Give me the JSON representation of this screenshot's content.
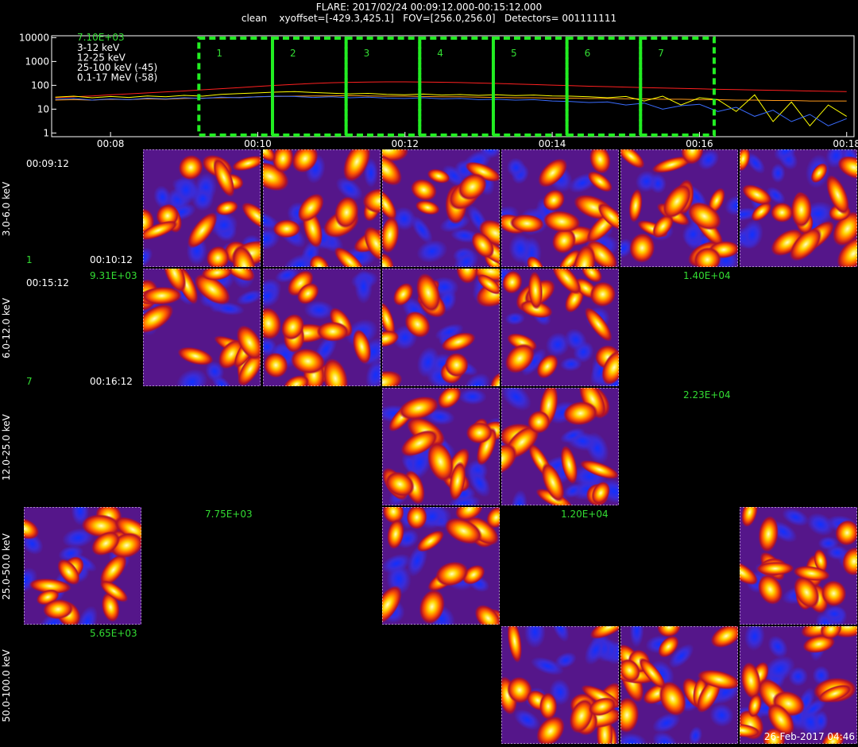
{
  "header": {
    "title": "FLARE: 2017/02/24 00:09:12.000-00:15:12.000",
    "subtitle": "clean    xyoffset=[-429.3,425.1]   FOV=[256.0,256.0]   Detectors= 001111111"
  },
  "chart_data": {
    "type": "line",
    "log_y": true,
    "legend_title": "7.10E+03",
    "xlim": [
      7.2,
      18.1
    ],
    "ylim": [
      0.7,
      12000
    ],
    "xticks": [
      {
        "value": 8,
        "label": "00:08"
      },
      {
        "value": 10,
        "label": "00:10"
      },
      {
        "value": 12,
        "label": "00:12"
      },
      {
        "value": 14,
        "label": "00:14"
      },
      {
        "value": 16,
        "label": "00:16"
      },
      {
        "value": 18,
        "label": "00:18"
      }
    ],
    "yticks": [
      1,
      10,
      100,
      1000,
      10000
    ],
    "x": [
      7.25,
      7.5,
      7.75,
      8,
      8.25,
      8.5,
      8.75,
      9,
      9.25,
      9.5,
      9.75,
      10,
      10.25,
      10.5,
      10.75,
      11,
      11.25,
      11.5,
      11.75,
      12,
      12.25,
      12.5,
      12.75,
      13,
      13.25,
      13.5,
      13.75,
      14,
      14.25,
      14.5,
      14.75,
      15,
      15.25,
      15.5,
      15.75,
      16,
      16.25,
      16.5,
      16.75,
      17,
      17.25,
      17.5,
      17.75,
      18
    ],
    "series": [
      {
        "name": "3-12 keV",
        "color": "#ff2020",
        "values": [
          30,
          33,
          36,
          40,
          44,
          48,
          53,
          58,
          65,
          72,
          80,
          90,
          100,
          110,
          120,
          128,
          134,
          138,
          140,
          140,
          138,
          135,
          130,
          125,
          120,
          114,
          108,
          102,
          97,
          92,
          88,
          84,
          80,
          77,
          74,
          71,
          68,
          66,
          64,
          62,
          60,
          58,
          56,
          55
        ]
      },
      {
        "name": "12-25 keV",
        "color": "#ff9a1a",
        "values": [
          24,
          25,
          24,
          26,
          25,
          27,
          26,
          28,
          29,
          30,
          31,
          33,
          34,
          35,
          36,
          36,
          37,
          36,
          35,
          35,
          34,
          33,
          33,
          32,
          31,
          30,
          30,
          29,
          29,
          28,
          28,
          27,
          27,
          26,
          26,
          25,
          25,
          24,
          24,
          23,
          23,
          22,
          22,
          22
        ]
      },
      {
        "name": "25-100 keV (-45)",
        "color": "#ffff00",
        "values": [
          32,
          35,
          30,
          34,
          31,
          36,
          33,
          38,
          35,
          42,
          45,
          48,
          52,
          55,
          50,
          47,
          44,
          46,
          42,
          40,
          43,
          39,
          41,
          38,
          40,
          37,
          39,
          36,
          35,
          33,
          30,
          34,
          22,
          35,
          15,
          30,
          25,
          8,
          40,
          3,
          20,
          2,
          15,
          5
        ]
      },
      {
        "name": "0.1-17 MeV (-58)",
        "color": "#3a6cff",
        "values": [
          26,
          28,
          24,
          27,
          25,
          29,
          27,
          30,
          28,
          32,
          30,
          33,
          35,
          34,
          31,
          33,
          30,
          32,
          29,
          28,
          30,
          27,
          28,
          25,
          26,
          24,
          25,
          22,
          21,
          19,
          20,
          15,
          18,
          10,
          14,
          16,
          8,
          12,
          5,
          9,
          3,
          6,
          2,
          4
        ]
      }
    ],
    "intervals": [
      {
        "label": "1",
        "start": 9.2,
        "end": 10.2
      },
      {
        "label": "2",
        "start": 10.2,
        "end": 11.2
      },
      {
        "label": "3",
        "start": 11.2,
        "end": 12.2
      },
      {
        "label": "4",
        "start": 12.2,
        "end": 13.2
      },
      {
        "label": "5",
        "start": 13.2,
        "end": 14.2
      },
      {
        "label": "6",
        "start": 14.2,
        "end": 15.2
      },
      {
        "label": "7",
        "start": 15.2,
        "end": 16.2
      }
    ]
  },
  "image_grid": {
    "energy_bands": [
      "3.0-6.0 keV",
      "6.0-12.0 keV",
      "12.0-25.0 keV",
      "25.0-50.0 keV",
      "50.0-100.0 keV"
    ],
    "time_labels": [
      {
        "start": "00:09:12",
        "index": "1",
        "end": "00:10:12"
      },
      {
        "start": "00:15:12",
        "index": "7",
        "end": "00:16:12"
      }
    ],
    "peak_labels": [
      "9.31E+03",
      "1.40E+04",
      "2.23E+04",
      "7.75E+03",
      "1.20E+04",
      "5.65E+03"
    ]
  },
  "footer": {
    "timestamp": "26-Feb-2017 04:46"
  }
}
